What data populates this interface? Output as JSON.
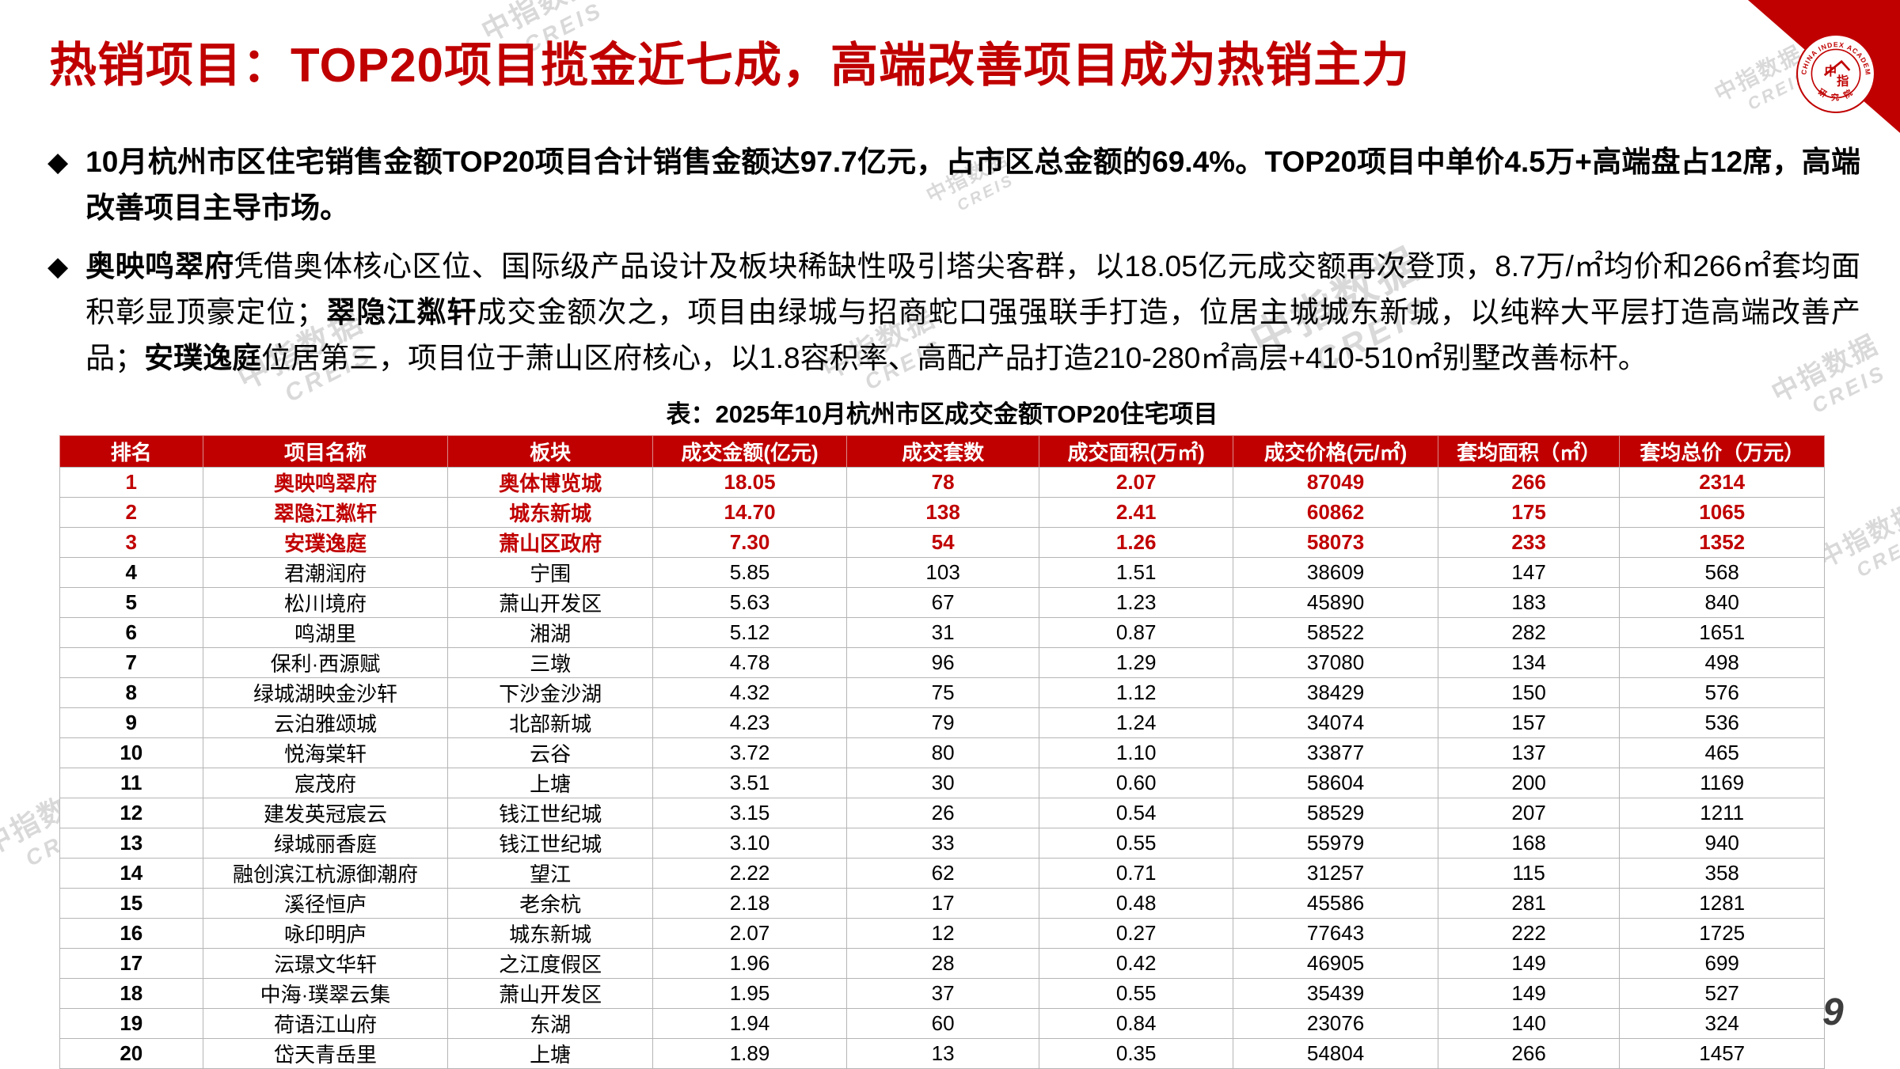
{
  "title": "热销项目：TOP20项目揽金近七成，高端改善项目成为热销主力",
  "bullet_marker": "◆",
  "bullets": [
    {
      "segments": [
        {
          "text": "10月杭州市区住宅销售金额TOP20项目合计销售金额达97.7亿元，占市区总金额的69.4%。TOP20项目中单价4.5万+高端盘占12席，高端改善项目主导市场。",
          "bold": true
        }
      ]
    },
    {
      "segments": [
        {
          "text": "奥映鸣翠府",
          "bold": true
        },
        {
          "text": "凭借奥体核心区位、国际级产品设计及板块稀缺性吸引塔尖客群，以18.05亿元成交额再次登顶，8.7万/㎡均价和266㎡套均面积彰显顶豪定位；",
          "bold": false
        },
        {
          "text": "翠隐江粼轩",
          "bold": true
        },
        {
          "text": "成交金额次之，项目由绿城与招商蛇口强强联手打造，位居主城城东新城，以纯粹大平层打造高端改善产品；",
          "bold": false
        },
        {
          "text": "安璞逸庭",
          "bold": true
        },
        {
          "text": "位居第三，项目位于萧山区府核心，以1.8容积率、高配产品打造210-280㎡高层+410-510㎡别墅改善标杆。",
          "bold": false
        }
      ]
    }
  ],
  "table": {
    "caption": "表：2025年10月杭州市区成交金额TOP20住宅项目",
    "headers": [
      "排名",
      "项目名称",
      "板块",
      "成交金额(亿元)",
      "成交套数",
      "成交面积(万㎡)",
      "成交价格(元/㎡)",
      "套均面积（㎡）",
      "套均总价（万元）"
    ],
    "highlight_rows": 3,
    "rows": [
      [
        "1",
        "奥映鸣翠府",
        "奥体博览城",
        "18.05",
        "78",
        "2.07",
        "87049",
        "266",
        "2314"
      ],
      [
        "2",
        "翠隐江粼轩",
        "城东新城",
        "14.70",
        "138",
        "2.41",
        "60862",
        "175",
        "1065"
      ],
      [
        "3",
        "安璞逸庭",
        "萧山区政府",
        "7.30",
        "54",
        "1.26",
        "58073",
        "233",
        "1352"
      ],
      [
        "4",
        "君潮润府",
        "宁围",
        "5.85",
        "103",
        "1.51",
        "38609",
        "147",
        "568"
      ],
      [
        "5",
        "松川境府",
        "萧山开发区",
        "5.63",
        "67",
        "1.23",
        "45890",
        "183",
        "840"
      ],
      [
        "6",
        "鸣湖里",
        "湘湖",
        "5.12",
        "31",
        "0.87",
        "58522",
        "282",
        "1651"
      ],
      [
        "7",
        "保利·西源赋",
        "三墩",
        "4.78",
        "96",
        "1.29",
        "37080",
        "134",
        "498"
      ],
      [
        "8",
        "绿城湖映金沙轩",
        "下沙金沙湖",
        "4.32",
        "75",
        "1.12",
        "38429",
        "150",
        "576"
      ],
      [
        "9",
        "云泊雅颂城",
        "北部新城",
        "4.23",
        "79",
        "1.24",
        "34074",
        "157",
        "536"
      ],
      [
        "10",
        "悦海棠轩",
        "云谷",
        "3.72",
        "80",
        "1.10",
        "33877",
        "137",
        "465"
      ],
      [
        "11",
        "宸茂府",
        "上塘",
        "3.51",
        "30",
        "0.60",
        "58604",
        "200",
        "1169"
      ],
      [
        "12",
        "建发英冠宸云",
        "钱江世纪城",
        "3.15",
        "26",
        "0.54",
        "58529",
        "207",
        "1211"
      ],
      [
        "13",
        "绿城丽香庭",
        "钱江世纪城",
        "3.10",
        "33",
        "0.55",
        "55979",
        "168",
        "940"
      ],
      [
        "14",
        "融创滨江杭源御潮府",
        "望江",
        "2.22",
        "62",
        "0.71",
        "31257",
        "115",
        "358"
      ],
      [
        "15",
        "溪径恒庐",
        "老余杭",
        "2.18",
        "17",
        "0.48",
        "45586",
        "281",
        "1281"
      ],
      [
        "16",
        "咏印明庐",
        "城东新城",
        "2.07",
        "12",
        "0.27",
        "77643",
        "222",
        "1725"
      ],
      [
        "17",
        "沄璟文华轩",
        "之江度假区",
        "1.96",
        "28",
        "0.42",
        "46905",
        "149",
        "699"
      ],
      [
        "18",
        "中海·璞翠云集",
        "萧山开发区",
        "1.95",
        "37",
        "0.55",
        "35439",
        "149",
        "527"
      ],
      [
        "19",
        "荷语江山府",
        "东湖",
        "1.94",
        "60",
        "0.84",
        "23076",
        "140",
        "324"
      ],
      [
        "20",
        "岱天青岳里",
        "上塘",
        "1.89",
        "13",
        "0.35",
        "54804",
        "266",
        "1457"
      ]
    ]
  },
  "watermark": {
    "line1": "中指数据",
    "line2": "CREIS"
  },
  "logo": {
    "ring_text": "CHINA INDEX ACADEMY",
    "bottom_text": "研 究 院",
    "center_char1": "中",
    "center_char2": "指"
  },
  "page": {
    "number": "9"
  },
  "colors": {
    "accent_red": "#c00000",
    "highlight_text": "#c00000",
    "header_text": "#ffffff"
  }
}
